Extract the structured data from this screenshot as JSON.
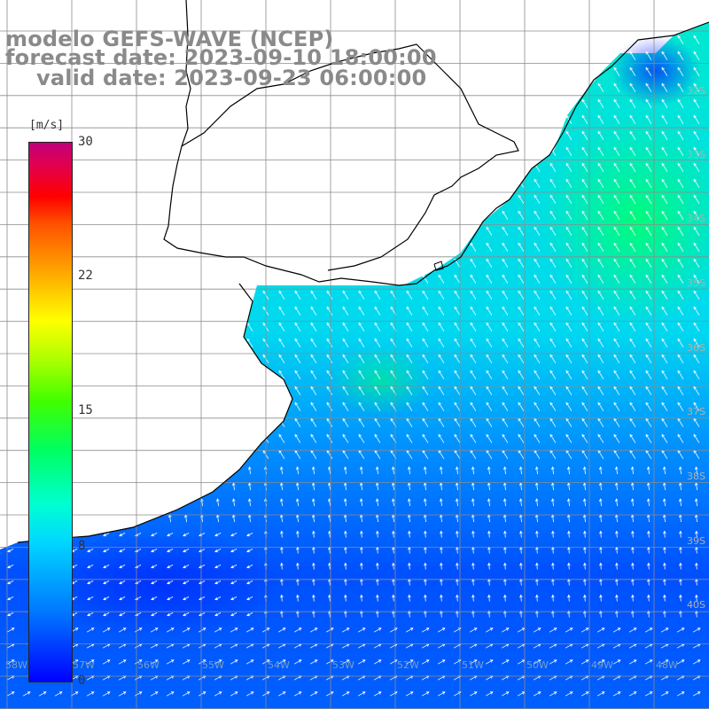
{
  "title": {
    "line1": "modelo GEFS-WAVE (NCEP)",
    "line2": "forecast date: 2023-09-10 18:00:00",
    "line3": "valid date: 2023-09-23 06:00:00"
  },
  "colorbar": {
    "unit": "[m/s]",
    "ticks": [
      "30",
      "22",
      "15",
      "8",
      "0"
    ],
    "colors": [
      "#0000ff",
      "#00d8ff",
      "#00ff60",
      "#ffff00",
      "#ff0000",
      "#c0007a"
    ]
  },
  "graticule": {
    "lat_labels": [
      "32S",
      "33S",
      "34S",
      "35S",
      "36S",
      "37S",
      "38S",
      "39S",
      "40S"
    ],
    "lon_labels": [
      "58W",
      "57W",
      "56W",
      "55W",
      "54W",
      "53W",
      "52W",
      "51W",
      "50W",
      "49W",
      "48W"
    ]
  },
  "colors": {
    "land": "#ffffff",
    "grid": "#8c8c8c",
    "coast": "#000000",
    "title": "#8a8a8a"
  }
}
